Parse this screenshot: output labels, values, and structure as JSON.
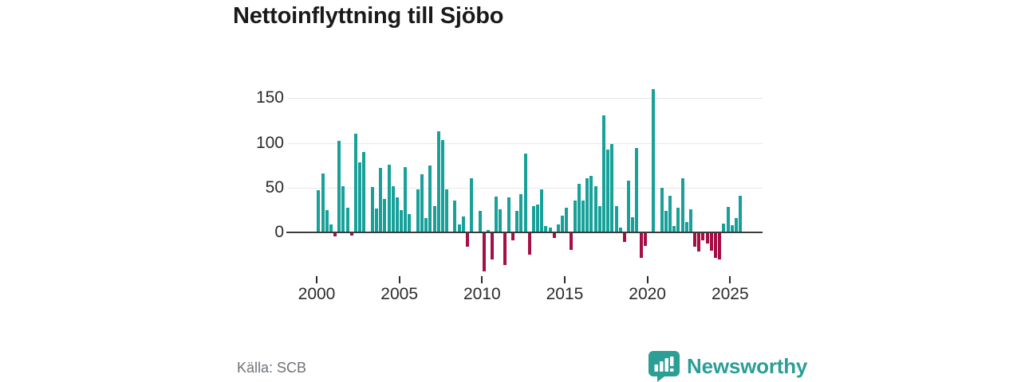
{
  "title": "Nettoinflyttning till Sjöbo",
  "source": "Källa: SCB",
  "brand": {
    "name": "Newsworthy",
    "icon": "speech-bubble-bar-chart-icon",
    "color": "#2b9e95"
  },
  "chart_data": {
    "type": "bar",
    "title": "Nettoinflyttning till Sjöbo",
    "xlabel": "",
    "ylabel": "",
    "period": "quarterly",
    "start_year": 2000,
    "start_quarter": 1,
    "end_label": "2025-Q3",
    "x_tick_years": [
      2000,
      2005,
      2010,
      2015,
      2020,
      2025
    ],
    "y_ticks": [
      150,
      100,
      50,
      0
    ],
    "ylim": [
      -50,
      170
    ],
    "grid": "horizontal",
    "legend": "none",
    "colors": {
      "positive": "#18a099",
      "negative": "#a60f45"
    },
    "values": [
      47,
      66,
      25,
      9,
      -4,
      102,
      52,
      28,
      -3,
      110,
      78,
      90,
      0,
      51,
      27,
      72,
      38,
      76,
      52,
      39,
      25,
      73,
      21,
      0,
      48,
      65,
      16,
      75,
      30,
      113,
      103,
      48,
      0,
      36,
      9,
      18,
      -16,
      61,
      0,
      24,
      -43,
      3,
      -30,
      40,
      26,
      -36,
      39,
      -9,
      24,
      43,
      88,
      -25,
      30,
      31,
      48,
      7,
      6,
      -6,
      9,
      19,
      28,
      -19,
      36,
      54,
      36,
      61,
      63,
      52,
      30,
      131,
      93,
      99,
      30,
      6,
      -10,
      58,
      17,
      94,
      -28,
      -15,
      0,
      160,
      0,
      50,
      24,
      41,
      7,
      28,
      61,
      12,
      26,
      -16,
      -21,
      -9,
      -12,
      -20,
      -28,
      -30,
      10,
      29,
      8,
      16,
      41
    ]
  }
}
